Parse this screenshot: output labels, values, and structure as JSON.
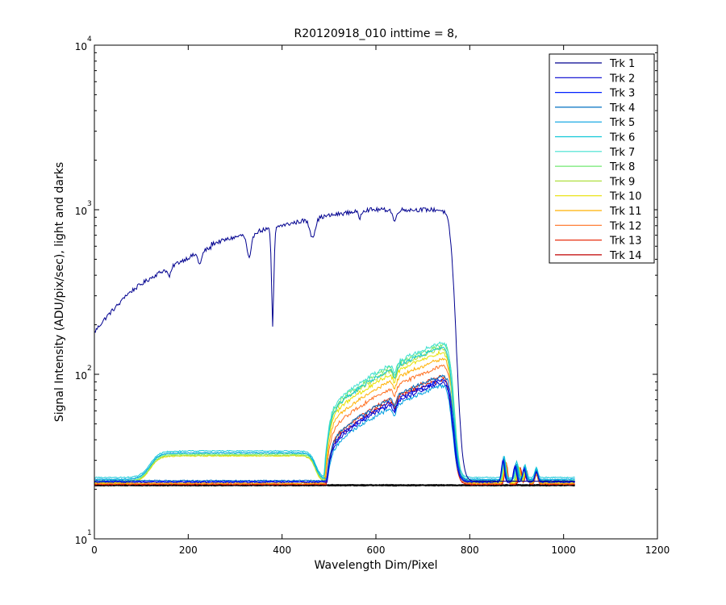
{
  "chart_data": {
    "type": "line",
    "title": "R20120918_010 inttime = 8,",
    "xlabel": "Wavelength Dim/Pixel",
    "ylabel": "Signal Intensity (ADU/pix/sec), light and darks",
    "xlim": [
      0,
      1200
    ],
    "ylim": [
      10,
      10000
    ],
    "yscale": "log",
    "x_ticks": [
      0,
      200,
      400,
      600,
      800,
      1000,
      1200
    ],
    "x_tick_labels": [
      "0",
      "200",
      "400",
      "600",
      "800",
      "1000",
      "1200"
    ],
    "y_ticks": [
      {
        "value": 10,
        "base": "10",
        "exp": "1"
      },
      {
        "value": 100,
        "base": "10",
        "exp": "2"
      },
      {
        "value": 1000,
        "base": "10",
        "exp": "3"
      },
      {
        "value": 10000,
        "base": "10",
        "exp": "4"
      }
    ],
    "grid": false,
    "legend_position": "top-right",
    "series": [
      {
        "name": "Trk 1",
        "color": "#00008f",
        "profile": "strong",
        "peak": 950,
        "base": 22.4
      },
      {
        "name": "Trk 2",
        "color": "#0000cf",
        "profile": "light",
        "peak": 92,
        "base": 22.1
      },
      {
        "name": "Trk 3",
        "color": "#0020ff",
        "profile": "light",
        "peak": 95,
        "base": 22.3
      },
      {
        "name": "Trk 4",
        "color": "#0070c0",
        "profile": "light",
        "peak": 100,
        "base": 22.6
      },
      {
        "name": "Trk 5",
        "color": "#00a0e0",
        "profile": "light",
        "peak": 88,
        "base": 23.0
      },
      {
        "name": "Trk 6",
        "color": "#10c8d8",
        "profile": "light",
        "peak": 150,
        "base": 23.6
      },
      {
        "name": "Trk 7",
        "color": "#40e0d0",
        "profile": "light",
        "peak": 160,
        "base": 22.9
      },
      {
        "name": "Trk 8",
        "color": "#70e870",
        "profile": "light",
        "peak": 155,
        "base": 22.5
      },
      {
        "name": "Trk 9",
        "color": "#b0e040",
        "profile": "light",
        "peak": 148,
        "base": 22.2
      },
      {
        "name": "Trk 10",
        "color": "#e8e000",
        "profile": "light",
        "peak": 140,
        "base": 22.0
      },
      {
        "name": "Trk 11",
        "color": "#ffb000",
        "profile": "light",
        "peak": 128,
        "base": 21.8
      },
      {
        "name": "Trk 12",
        "color": "#ff7020",
        "profile": "light",
        "peak": 115,
        "base": 21.6
      },
      {
        "name": "Trk 13",
        "color": "#e83010",
        "profile": "light",
        "peak": 100,
        "base": 21.5
      },
      {
        "name": "Trk 14",
        "color": "#c00000",
        "profile": "light",
        "peak": 96,
        "base": 21.4
      }
    ]
  }
}
